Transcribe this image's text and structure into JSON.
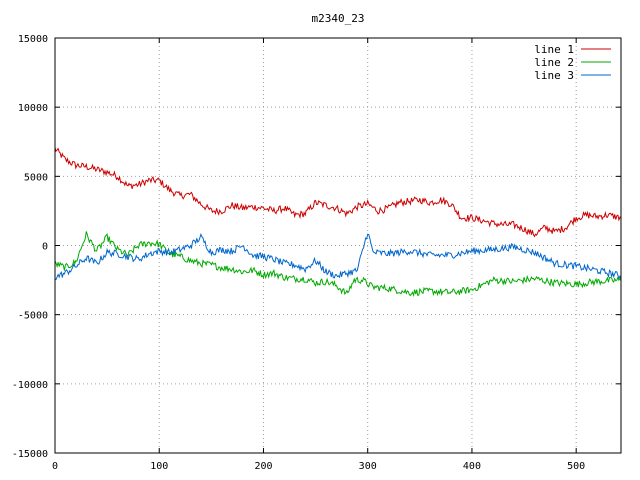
{
  "chart_data": {
    "type": "line",
    "title": "m2340_23",
    "xlabel": "",
    "ylabel": "",
    "xlim": [
      0,
      543
    ],
    "ylim": [
      -15000,
      15000
    ],
    "x_ticks": [
      0,
      100,
      200,
      300,
      400,
      500
    ],
    "y_ticks": [
      -15000,
      -10000,
      -5000,
      0,
      5000,
      10000,
      15000
    ],
    "grid": true,
    "legend_position": "top-right",
    "series": [
      {
        "name": "line 1",
        "color": "#cc0000",
        "x": [
          0,
          10,
          20,
          30,
          40,
          50,
          60,
          70,
          80,
          90,
          100,
          110,
          120,
          130,
          140,
          150,
          160,
          170,
          180,
          190,
          200,
          210,
          220,
          230,
          240,
          250,
          260,
          270,
          280,
          290,
          300,
          310,
          320,
          330,
          340,
          350,
          360,
          370,
          380,
          390,
          400,
          410,
          420,
          430,
          440,
          450,
          460,
          470,
          480,
          490,
          500,
          510,
          520,
          530,
          543
        ],
        "y": [
          7000,
          6200,
          5800,
          5700,
          5500,
          5300,
          5000,
          4300,
          4400,
          4700,
          4700,
          4000,
          3600,
          3700,
          3000,
          2500,
          2500,
          2900,
          2700,
          2800,
          2700,
          2500,
          2700,
          2200,
          2300,
          3100,
          2900,
          2700,
          2300,
          2800,
          3000,
          2500,
          2700,
          3100,
          3200,
          3300,
          3100,
          3300,
          3000,
          2000,
          2000,
          1800,
          1600,
          1500,
          1500,
          1200,
          800,
          1300,
          1000,
          1300,
          2000,
          2200,
          2100,
          2200,
          2000
        ],
        "noise": 250
      },
      {
        "name": "line 2",
        "color": "#00aa00",
        "x": [
          0,
          10,
          20,
          30,
          40,
          50,
          60,
          70,
          80,
          90,
          100,
          110,
          120,
          130,
          140,
          150,
          160,
          170,
          180,
          190,
          200,
          210,
          220,
          230,
          240,
          250,
          260,
          270,
          280,
          287,
          295,
          305,
          320,
          340,
          360,
          380,
          400,
          420,
          440,
          460,
          480,
          500,
          520,
          543
        ],
        "y": [
          -1300,
          -1600,
          -1200,
          800,
          -400,
          600,
          -300,
          -700,
          0,
          200,
          100,
          -600,
          -800,
          -1100,
          -1300,
          -1400,
          -1600,
          -1700,
          -1900,
          -1800,
          -2100,
          -2000,
          -2300,
          -2400,
          -2400,
          -2700,
          -2600,
          -2900,
          -3500,
          -2500,
          -2500,
          -3000,
          -3100,
          -3400,
          -3300,
          -3400,
          -3200,
          -2500,
          -2600,
          -2400,
          -2700,
          -2800,
          -2600,
          -2500
        ],
        "noise": 250
      },
      {
        "name": "line 3",
        "color": "#0066cc",
        "x": [
          0,
          10,
          20,
          30,
          40,
          50,
          60,
          70,
          80,
          90,
          100,
          110,
          120,
          130,
          140,
          150,
          160,
          170,
          180,
          190,
          200,
          210,
          220,
          230,
          240,
          250,
          260,
          270,
          280,
          290,
          300,
          305,
          320,
          340,
          360,
          380,
          400,
          420,
          440,
          460,
          480,
          500,
          520,
          543
        ],
        "y": [
          -2300,
          -2000,
          -1500,
          -900,
          -1300,
          -500,
          -600,
          -800,
          -1000,
          -600,
          -400,
          -500,
          -300,
          0,
          600,
          -500,
          -300,
          -400,
          0,
          -700,
          -800,
          -1000,
          -1300,
          -1400,
          -1700,
          -1100,
          -1900,
          -2200,
          -2000,
          -1800,
          1000,
          -500,
          -600,
          -400,
          -700,
          -700,
          -400,
          -300,
          -100,
          -500,
          -1300,
          -1500,
          -1800,
          -2200
        ],
        "noise": 250
      }
    ]
  }
}
